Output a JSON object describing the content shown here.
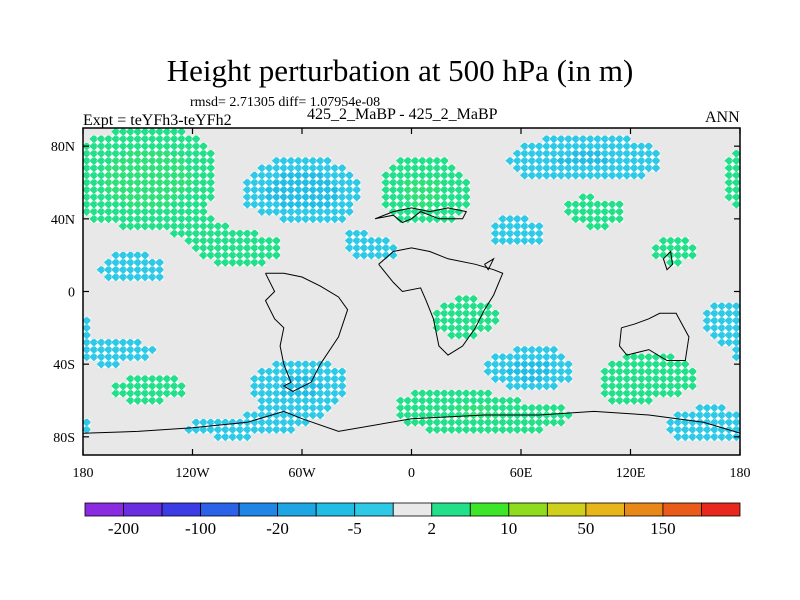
{
  "chart_data": {
    "type": "heatmap",
    "title": "Height perturbation at 500 hPa (in m)",
    "stats_line": "rmsd= 2.71305 diff= 1.07954e-08",
    "left_string": "Expt = teYFh3-teYFh2",
    "center_string": "425_2_MaBP - 425_2_MaBP",
    "right_string": "ANN",
    "x_range": [
      -180,
      180
    ],
    "y_range": [
      -90,
      90
    ],
    "x_ticks": [
      {
        "value": -180,
        "label": "180"
      },
      {
        "value": -120,
        "label": "120W"
      },
      {
        "value": -60,
        "label": "60W"
      },
      {
        "value": 0,
        "label": "0"
      },
      {
        "value": 60,
        "label": "60E"
      },
      {
        "value": 120,
        "label": "120E"
      },
      {
        "value": 180,
        "label": "180"
      }
    ],
    "y_ticks": [
      {
        "value": 80,
        "label": "80N"
      },
      {
        "value": 40,
        "label": "40N"
      },
      {
        "value": 0,
        "label": "0"
      },
      {
        "value": -40,
        "label": "40S"
      },
      {
        "value": -80,
        "label": "80S"
      }
    ],
    "levels": [
      -200,
      -150,
      -100,
      -50,
      -20,
      -10,
      -5,
      -2,
      2,
      5,
      10,
      20,
      50,
      100,
      150
    ],
    "colorbar_colors": [
      "#8a2be2",
      "#6a2ee0",
      "#3c3ce6",
      "#2a62e8",
      "#1f86e6",
      "#1ea6e4",
      "#22bde4",
      "#2ec9e6",
      "#e9e9e9",
      "#22e08a",
      "#3ee62a",
      "#8fdc1f",
      "#d0d01c",
      "#e8b51a",
      "#e88817",
      "#ea5a18",
      "#e8281c"
    ],
    "colorbar_labels": [
      {
        "index": 1,
        "label": "-200"
      },
      {
        "index": 3,
        "label": "-100"
      },
      {
        "index": 5,
        "label": "-20"
      },
      {
        "index": 7,
        "label": "-5"
      },
      {
        "index": 9,
        "label": "2"
      },
      {
        "index": 11,
        "label": "10"
      },
      {
        "index": 13,
        "label": "50"
      },
      {
        "index": 15,
        "label": "150"
      }
    ],
    "field_features": [
      {
        "lon": -145,
        "lat": 62,
        "amp": 6.0,
        "sx": 28,
        "sy": 18
      },
      {
        "lon": -60,
        "lat": 55,
        "amp": -6.0,
        "sx": 25,
        "sy": 12
      },
      {
        "lon": 5,
        "lat": 55,
        "amp": 5.0,
        "sx": 20,
        "sy": 14
      },
      {
        "lon": 60,
        "lat": 35,
        "amp": -3.0,
        "sx": 18,
        "sy": 10
      },
      {
        "lon": 95,
        "lat": 45,
        "amp": 3.0,
        "sx": 20,
        "sy": 10
      },
      {
        "lon": 95,
        "lat": 72,
        "amp": -4.5,
        "sx": 30,
        "sy": 10
      },
      {
        "lon": -150,
        "lat": 15,
        "amp": -3.0,
        "sx": 20,
        "sy": 10
      },
      {
        "lon": -95,
        "lat": 25,
        "amp": 3.0,
        "sx": 25,
        "sy": 10
      },
      {
        "lon": -20,
        "lat": 25,
        "amp": -2.5,
        "sx": 18,
        "sy": 9
      },
      {
        "lon": 145,
        "lat": 22,
        "amp": 2.0,
        "sx": 18,
        "sy": 10
      },
      {
        "lon": -160,
        "lat": -35,
        "amp": -3.0,
        "sx": 20,
        "sy": 8
      },
      {
        "lon": -145,
        "lat": -52,
        "amp": 3.5,
        "sx": 18,
        "sy": 8
      },
      {
        "lon": -60,
        "lat": -52,
        "amp": -5.0,
        "sx": 18,
        "sy": 10
      },
      {
        "lon": 40,
        "lat": -65,
        "amp": 4.5,
        "sx": 35,
        "sy": 10
      },
      {
        "lon": 65,
        "lat": -45,
        "amp": -5.5,
        "sx": 18,
        "sy": 10
      },
      {
        "lon": 130,
        "lat": -48,
        "amp": 4.0,
        "sx": 22,
        "sy": 10
      },
      {
        "lon": 160,
        "lat": -72,
        "amp": -3.0,
        "sx": 20,
        "sy": 10
      },
      {
        "lon": -100,
        "lat": -75,
        "amp": -2.0,
        "sx": 40,
        "sy": 8
      },
      {
        "lon": 30,
        "lat": -15,
        "amp": 2.5,
        "sx": 20,
        "sy": 12
      },
      {
        "lon": 170,
        "lat": -15,
        "amp": -2.5,
        "sx": 12,
        "sy": 10
      }
    ],
    "coastlines": [
      [
        [
          -20,
          40
        ],
        [
          -10,
          42
        ],
        [
          -5,
          38
        ],
        [
          0,
          40
        ],
        [
          5,
          44
        ],
        [
          10,
          42
        ],
        [
          15,
          40
        ],
        [
          20,
          40
        ],
        [
          28,
          40
        ],
        [
          30,
          44
        ],
        [
          20,
          46
        ],
        [
          10,
          44
        ],
        [
          0,
          46
        ],
        [
          -10,
          44
        ],
        [
          -20,
          40
        ]
      ],
      [
        [
          -18,
          15
        ],
        [
          -10,
          5
        ],
        [
          -5,
          0
        ],
        [
          5,
          2
        ],
        [
          8,
          -5
        ],
        [
          12,
          -15
        ],
        [
          15,
          -30
        ],
        [
          20,
          -35
        ],
        [
          28,
          -30
        ],
        [
          35,
          -20
        ],
        [
          40,
          -10
        ],
        [
          45,
          -2
        ],
        [
          50,
          10
        ],
        [
          45,
          12
        ],
        [
          35,
          15
        ],
        [
          20,
          18
        ],
        [
          10,
          22
        ],
        [
          0,
          24
        ],
        [
          -10,
          22
        ],
        [
          -18,
          15
        ]
      ],
      [
        [
          -80,
          10
        ],
        [
          -75,
          0
        ],
        [
          -80,
          -5
        ],
        [
          -75,
          -15
        ],
        [
          -70,
          -20
        ],
        [
          -72,
          -30
        ],
        [
          -70,
          -40
        ],
        [
          -66,
          -50
        ],
        [
          -70,
          -52
        ],
        [
          -65,
          -55
        ],
        [
          -55,
          -50
        ],
        [
          -50,
          -40
        ],
        [
          -40,
          -25
        ],
        [
          -35,
          -10
        ],
        [
          -40,
          -3
        ],
        [
          -50,
          3
        ],
        [
          -60,
          8
        ],
        [
          -70,
          10
        ],
        [
          -80,
          10
        ]
      ],
      [
        [
          115,
          -20
        ],
        [
          114,
          -30
        ],
        [
          118,
          -35
        ],
        [
          130,
          -32
        ],
        [
          140,
          -38
        ],
        [
          150,
          -38
        ],
        [
          152,
          -25
        ],
        [
          145,
          -12
        ],
        [
          136,
          -12
        ],
        [
          130,
          -15
        ],
        [
          122,
          -18
        ],
        [
          115,
          -20
        ]
      ],
      [
        [
          -180,
          -78
        ],
        [
          -150,
          -77
        ],
        [
          -120,
          -75
        ],
        [
          -90,
          -72
        ],
        [
          -70,
          -66
        ],
        [
          -60,
          -70
        ],
        [
          -40,
          -77
        ],
        [
          0,
          -70
        ],
        [
          40,
          -68
        ],
        [
          70,
          -68
        ],
        [
          100,
          -66
        ],
        [
          130,
          -68
        ],
        [
          160,
          -72
        ],
        [
          180,
          -78
        ]
      ],
      [
        [
          138,
          18
        ],
        [
          142,
          22
        ],
        [
          143,
          15
        ],
        [
          140,
          12
        ],
        [
          138,
          18
        ]
      ],
      [
        [
          40,
          15
        ],
        [
          45,
          18
        ],
        [
          42,
          12
        ],
        [
          40,
          15
        ]
      ]
    ]
  }
}
